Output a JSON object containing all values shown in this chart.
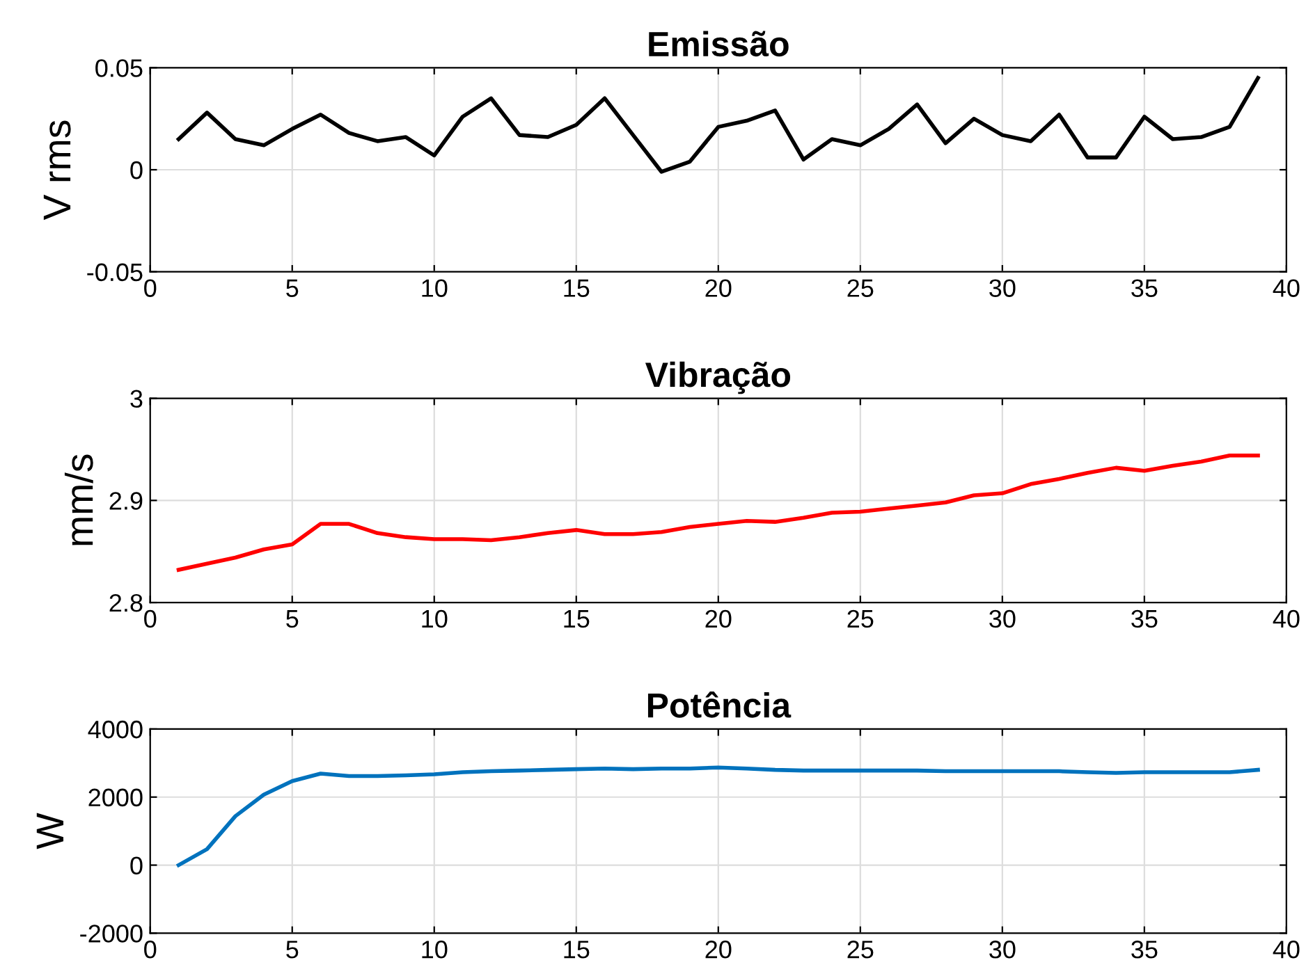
{
  "chart_data": [
    {
      "type": "line",
      "title": "Emissão",
      "ylabel": "V rms",
      "x": [
        1,
        2,
        3,
        4,
        5,
        6,
        7,
        8,
        9,
        10,
        11,
        12,
        13,
        14,
        15,
        16,
        17,
        18,
        19,
        20,
        21,
        22,
        23,
        24,
        25,
        26,
        27,
        28,
        29,
        30,
        31,
        32,
        33,
        34,
        35,
        36,
        37,
        38,
        39
      ],
      "series": [
        {
          "color": "#000000",
          "values": [
            0.015,
            0.028,
            0.015,
            0.012,
            0.02,
            0.027,
            0.018,
            0.014,
            0.016,
            0.007,
            0.026,
            0.035,
            0.017,
            0.016,
            0.022,
            0.035,
            0.017,
            -0.001,
            0.004,
            0.021,
            0.024,
            0.029,
            0.005,
            0.015,
            0.012,
            0.02,
            0.032,
            0.013,
            0.025,
            0.017,
            0.014,
            0.027,
            0.006,
            0.006,
            0.026,
            0.015,
            0.016,
            0.021,
            0.045
          ]
        }
      ],
      "xlim": [
        0,
        40
      ],
      "xticks": [
        0,
        5,
        10,
        15,
        20,
        25,
        30,
        35,
        40
      ],
      "ylim": [
        -0.05,
        0.05
      ],
      "yticks": [
        -0.05,
        0,
        0.05
      ],
      "grid": true
    },
    {
      "type": "line",
      "title": "Vibração",
      "ylabel": "mm/s",
      "x": [
        1,
        2,
        3,
        4,
        5,
        6,
        7,
        8,
        9,
        10,
        11,
        12,
        13,
        14,
        15,
        16,
        17,
        18,
        19,
        20,
        21,
        22,
        23,
        24,
        25,
        26,
        27,
        28,
        29,
        30,
        31,
        32,
        33,
        34,
        35,
        36,
        37,
        38,
        39
      ],
      "series": [
        {
          "color": "#ff0000",
          "values": [
            2.832,
            2.838,
            2.844,
            2.852,
            2.857,
            2.877,
            2.877,
            2.868,
            2.864,
            2.862,
            2.862,
            2.861,
            2.864,
            2.868,
            2.871,
            2.867,
            2.867,
            2.869,
            2.874,
            2.877,
            2.88,
            2.879,
            2.883,
            2.888,
            2.889,
            2.892,
            2.895,
            2.898,
            2.905,
            2.907,
            2.916,
            2.921,
            2.927,
            2.932,
            2.929,
            2.934,
            2.938,
            2.944,
            2.944
          ]
        }
      ],
      "xlim": [
        0,
        40
      ],
      "xticks": [
        0,
        5,
        10,
        15,
        20,
        25,
        30,
        35,
        40
      ],
      "ylim": [
        2.8,
        3
      ],
      "yticks": [
        2.8,
        2.9,
        3
      ],
      "grid": true
    },
    {
      "type": "line",
      "title": "Potência",
      "ylabel": "W",
      "x": [
        1,
        2,
        3,
        4,
        5,
        6,
        7,
        8,
        9,
        10,
        11,
        12,
        13,
        14,
        15,
        16,
        17,
        18,
        19,
        20,
        21,
        22,
        23,
        24,
        25,
        26,
        27,
        28,
        29,
        30,
        31,
        32,
        33,
        34,
        35,
        36,
        37,
        38,
        39
      ],
      "series": [
        {
          "color": "#0072bd",
          "values": [
            0,
            470,
            1440,
            2070,
            2470,
            2690,
            2620,
            2620,
            2640,
            2670,
            2730,
            2760,
            2780,
            2800,
            2820,
            2840,
            2820,
            2840,
            2840,
            2870,
            2840,
            2800,
            2780,
            2780,
            2780,
            2780,
            2780,
            2760,
            2760,
            2760,
            2760,
            2760,
            2730,
            2710,
            2730,
            2730,
            2730,
            2730,
            2800
          ]
        }
      ],
      "xlim": [
        0,
        40
      ],
      "xticks": [
        0,
        5,
        10,
        15,
        20,
        25,
        30,
        35,
        40
      ],
      "ylim": [
        -2000,
        4000
      ],
      "yticks": [
        -2000,
        0,
        2000,
        4000
      ],
      "grid": true
    }
  ]
}
